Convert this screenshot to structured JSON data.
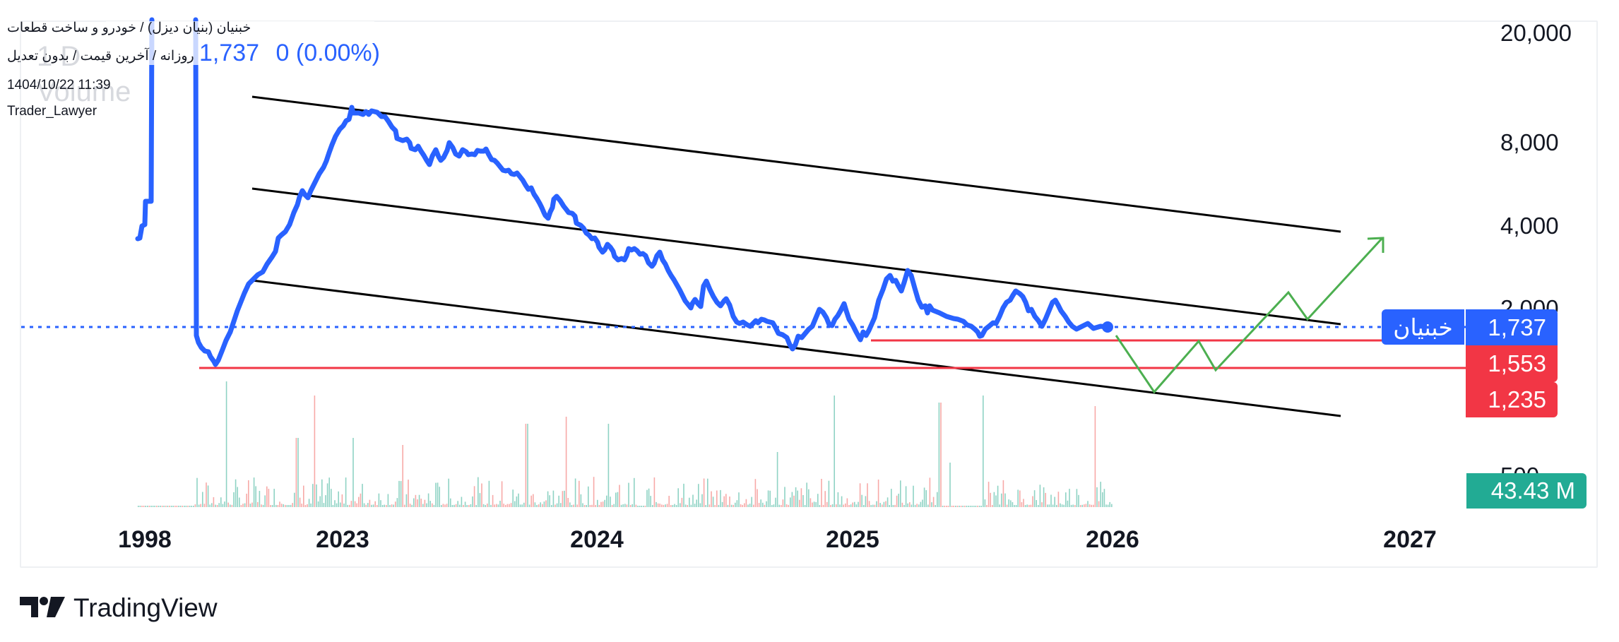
{
  "header": {
    "title_line": "خبنیان (بنیان دیزل) / خودرو و ساخت قطعات",
    "subtitle_line": "روزانه / آخرین قیمت / بدون تعدیل",
    "timestamp": "1404/10/22 11:39",
    "author": "Trader_Lawyer",
    "last_price": "1,737",
    "change": "0 (0.00%)",
    "watermark_interval": "1 D",
    "watermark_volume": "Volume"
  },
  "price_axis": {
    "labels": [
      "20,000",
      "8,000",
      "4,000",
      "2,000",
      "500"
    ]
  },
  "time_axis": {
    "labels": [
      "1998",
      "2023",
      "2024",
      "2025",
      "2026",
      "2027"
    ]
  },
  "tags": {
    "symbol": "خبنیان",
    "price": "1,737",
    "level_1": "1,553",
    "level_2": "1,235",
    "volume": "43.43 M"
  },
  "colors": {
    "price_line": "#2962ff",
    "channel": "#000000",
    "support": "#f23645",
    "projection": "#4caf50",
    "volume_up": "#8fd3c4",
    "volume_down": "#f7a9a7",
    "volume_tag": "#22ab94"
  },
  "footer": {
    "brand": "TradingView"
  },
  "chart_data": {
    "type": "line",
    "title": "خبنیان (بنیان دیزل) / خودرو و ساخت قطعات",
    "scale": "log",
    "xlabel": "",
    "ylabel": "",
    "x_ticks": [
      "1998",
      "2023",
      "2024",
      "2025",
      "2026",
      "2027"
    ],
    "y_ticks": [
      20000,
      8000,
      4000,
      2000,
      500
    ],
    "ylim": [
      1000,
      22000
    ],
    "grid": false,
    "series": [
      {
        "name": "خبنیان close",
        "approx_points": [
          {
            "x": "1998",
            "y": 3700
          },
          {
            "x": "1998",
            "y": 25000
          },
          {
            "x": "2022-late",
            "y": 1400
          },
          {
            "x": "2023-01",
            "y": 1250
          },
          {
            "x": "2023-05",
            "y": 2800
          },
          {
            "x": "2023-07",
            "y": 12000
          },
          {
            "x": "2023-09",
            "y": 11500
          },
          {
            "x": "2023-12",
            "y": 7500
          },
          {
            "x": "2024-03",
            "y": 7600
          },
          {
            "x": "2024-07",
            "y": 4200
          },
          {
            "x": "2024-08",
            "y": 5000
          },
          {
            "x": "2024-11",
            "y": 3400
          },
          {
            "x": "2025-01",
            "y": 2600
          },
          {
            "x": "2025-04",
            "y": 1900
          },
          {
            "x": "2025-09",
            "y": 1560
          },
          {
            "x": "2025-10",
            "y": 1900
          },
          {
            "x": "2026-01",
            "y": 1600
          },
          {
            "x": "2026-03",
            "y": 2800
          },
          {
            "x": "2026-04",
            "y": 2900
          },
          {
            "x": "2026-06",
            "y": 1950
          },
          {
            "x": "2026-09",
            "y": 1580
          },
          {
            "x": "2026-11",
            "y": 2500
          },
          {
            "x": "2027-01",
            "y": 1737
          }
        ],
        "last": 1737
      }
    ],
    "horizontal_levels": [
      {
        "label": "last price",
        "value": 1737,
        "style": "dotted",
        "color": "#2962ff"
      },
      {
        "label": "support",
        "value": 1553,
        "color": "#f23645"
      },
      {
        "label": "support",
        "value": 1235,
        "color": "#f23645"
      }
    ],
    "channel": "descending parallel channel (3 lines)",
    "projection": "green zigzag down to lower channel then breakout upward (arrow)",
    "volume": {
      "last": "43.43 M"
    }
  }
}
